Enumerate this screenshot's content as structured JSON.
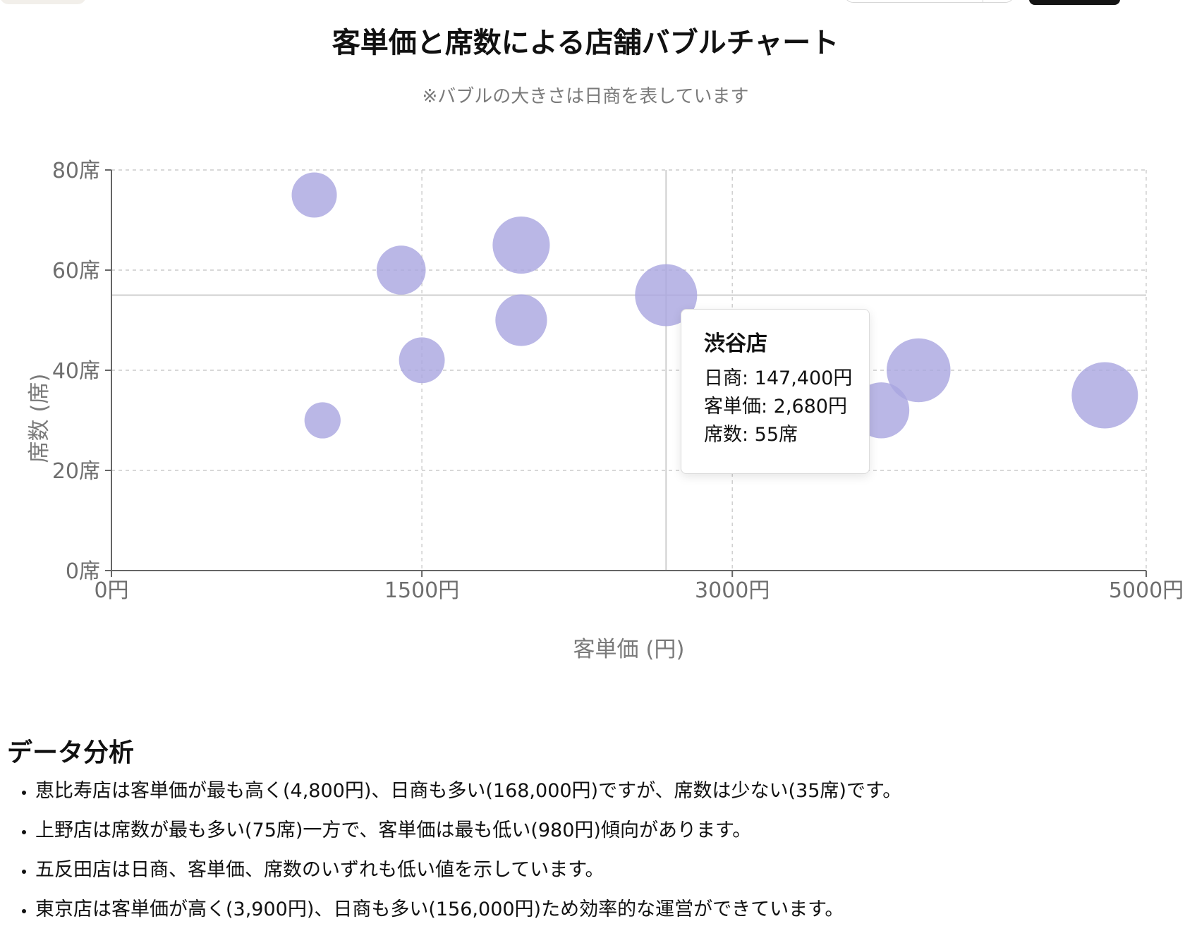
{
  "chart_data": {
    "type": "bubble",
    "title": "客単価と席数による店舗バブルチャート",
    "subtitle": "※バブルの大きさは日商を表しています",
    "xlabel": "客単価 (円)",
    "ylabel": "席数 (席)",
    "xlim": [
      0,
      5000
    ],
    "ylim": [
      0,
      80
    ],
    "x_ticks": [
      "0円",
      "1500円",
      "3000円",
      "5000円"
    ],
    "x_tick_values": [
      0,
      1500,
      3000,
      5000
    ],
    "y_ticks": [
      "0席",
      "20席",
      "40席",
      "60席",
      "80席"
    ],
    "y_tick_values": [
      0,
      20,
      40,
      60,
      80
    ],
    "grid": true,
    "bubble_color": "#a9a5e0",
    "points": [
      {
        "x": 980,
        "y": 75,
        "size": 78000
      },
      {
        "x": 1400,
        "y": 60,
        "size": 92000
      },
      {
        "x": 1500,
        "y": 42,
        "size": 80000
      },
      {
        "x": 1020,
        "y": 30,
        "size": 50000
      },
      {
        "x": 1980,
        "y": 65,
        "size": 125000
      },
      {
        "x": 1980,
        "y": 50,
        "size": 102000
      },
      {
        "x": 2680,
        "y": 55,
        "size": 147400
      },
      {
        "x": 3720,
        "y": 32,
        "size": 120000
      },
      {
        "x": 3900,
        "y": 40,
        "size": 156000
      },
      {
        "x": 4800,
        "y": 35,
        "size": 168000
      }
    ],
    "hover_crosshair": {
      "x": 2680,
      "y": 55
    }
  },
  "tooltip": {
    "title": "渋谷店",
    "sales": "日商: 147,400円",
    "price": "客単価: 2,680円",
    "seats": "席数: 55席"
  },
  "analysis": {
    "heading": "データ分析",
    "items": [
      "恵比寿店は客単価が最も高く(4,800円)、日商も多い(168,000円)ですが、席数は少ない(35席)です。",
      "上野店は席数が最も多い(75席)一方で、客単価は最も低い(980円)傾向があります。",
      "五反田店は日商、客単価、席数のいずれも低い値を示しています。",
      "東京店は客単価が高く(3,900円)、日商も多い(156,000円)ため効率的な運営ができています。"
    ]
  }
}
